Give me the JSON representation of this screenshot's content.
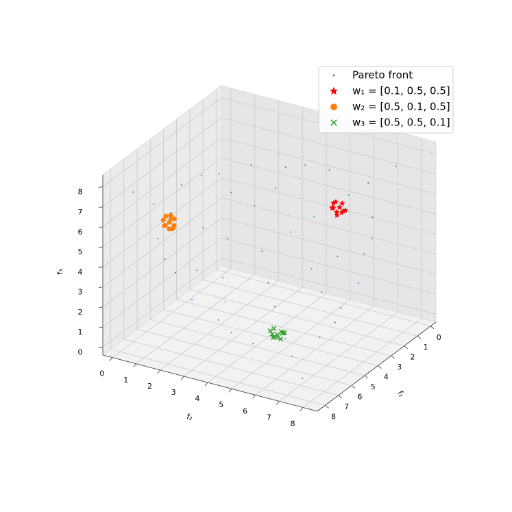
{
  "chart_data": {
    "type": "scatter3d",
    "xlabel": "f₁",
    "ylabel": "f₂",
    "zlabel": "f₃",
    "xlim": [
      -0.4,
      8.6
    ],
    "ylim": [
      -0.4,
      8.6
    ],
    "zlim": [
      -0.4,
      8.6
    ],
    "xticks": [
      0,
      1,
      2,
      3,
      4,
      5,
      6,
      7,
      8
    ],
    "yticks": [
      0,
      1,
      2,
      3,
      4,
      5,
      6,
      7,
      8
    ],
    "zticks": [
      0,
      1,
      2,
      3,
      4,
      5,
      6,
      7,
      8
    ],
    "grid": true,
    "legend": "upper right",
    "series": [
      {
        "name": "Pareto front",
        "color": "#1f77b4",
        "marker": "dot",
        "x": [
          3.4,
          1.6,
          4.6,
          4.6,
          0.8,
          5.6,
          5.6,
          2.4,
          2.4,
          6.9,
          3.2,
          2.0,
          5.8,
          5.8,
          3.2,
          2.0,
          0.4,
          6.2,
          6.2,
          4,
          4,
          2.3,
          1.2,
          4,
          6.8,
          6.8,
          4,
          1.2,
          2.7,
          2.7,
          5.1,
          0.1,
          7.2,
          7.2,
          4.8,
          0.8,
          6.6,
          4.8,
          6.6,
          0.8,
          1.6,
          3.4,
          6.7,
          6.7,
          3.4,
          1.6
        ],
        "y": [
          3.4,
          4.6,
          1.6,
          4.6,
          5.6,
          0.8,
          5.6,
          2.4,
          6.9,
          2.4,
          2.0,
          3.2,
          3.2,
          2.0,
          5.8,
          5.8,
          6.2,
          0.4,
          6.2,
          4,
          2.3,
          4,
          4,
          1.2,
          1.2,
          4,
          6.8,
          6.8,
          2.7,
          5.1,
          2.7,
          7.2,
          0.1,
          7.2,
          0.8,
          4.8,
          4.8,
          6.6,
          0.8,
          6.6,
          3.4,
          1.6,
          3.4,
          1.6,
          6.7,
          6.7
        ],
        "z": [
          3.4,
          4.6,
          4.6,
          1.6,
          5.6,
          5.6,
          0.8,
          6.9,
          2.4,
          2.4,
          5.8,
          5.8,
          2.0,
          3.2,
          2.0,
          3.2,
          6.2,
          6.2,
          0.4,
          2.3,
          4,
          4,
          6.8,
          6.8,
          4,
          1.2,
          1.2,
          4,
          5.1,
          2.7,
          2.7,
          7.2,
          7.2,
          0.1,
          6.6,
          6.6,
          0.8,
          0.8,
          4.8,
          4.8,
          6.7,
          6.7,
          1.6,
          3.4,
          1.6,
          3.4
        ]
      },
      {
        "name": "w₁ = [0.1, 0.5, 0.5]",
        "color": "#ff0000",
        "marker": "star",
        "x": [
          0.4,
          0.6,
          0.5,
          0.3,
          0.7,
          0.5,
          0.4,
          0.6,
          0.2,
          0.8,
          0.5,
          0.6
        ],
        "y": [
          5.0,
          5.2,
          4.8,
          5.1,
          4.9,
          5.3,
          4.7,
          5.0,
          5.0,
          5.1,
          4.9,
          4.8
        ],
        "z": [
          4.6,
          4.5,
          4.8,
          4.4,
          4.7,
          4.6,
          4.5,
          4.3,
          4.7,
          4.6,
          4.9,
          4.6
        ]
      },
      {
        "name": "w₂ = [0.5, 0.1, 0.5]",
        "color": "#ff7f0e",
        "marker": "circle",
        "x": [
          5.9,
          6.1,
          5.7,
          6.0,
          5.8,
          6.2,
          5.9,
          5.6,
          6.0,
          5.9,
          6.1,
          5.8
        ],
        "y": [
          0.9,
          0.8,
          1.0,
          1.1,
          0.7,
          0.9,
          1.0,
          0.8,
          0.7,
          1.1,
          1.0,
          0.9
        ],
        "z": [
          5.3,
          5.2,
          5.4,
          5.1,
          5.5,
          5.3,
          5.0,
          5.3,
          5.4,
          5.2,
          5.1,
          5.6
        ]
      },
      {
        "name": "w₃ = [0.5, 0.5, 0.1]",
        "color": "#2ca02c",
        "marker": "x",
        "x": [
          4.4,
          4.6,
          4.2,
          4.5,
          4.3,
          4.7,
          4.4,
          4.1,
          4.5,
          4.3,
          4.6,
          4.4
        ],
        "y": [
          4.6,
          4.5,
          4.7,
          4.8,
          4.4,
          4.6,
          4.3,
          4.6,
          4.5,
          4.8,
          4.7,
          4.9
        ],
        "z": [
          0.1,
          0.2,
          0.1,
          0.0,
          0.3,
          0.1,
          0.2,
          0.1,
          0.0,
          0.2,
          0.1,
          0.3
        ]
      }
    ]
  }
}
